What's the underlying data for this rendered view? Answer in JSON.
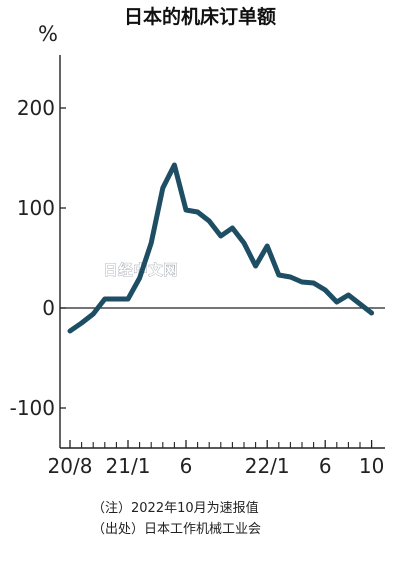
{
  "chart_data": {
    "type": "line",
    "title": "日本的机床订单额",
    "ylabel": "%",
    "xlabel": "",
    "ylim": [
      -140,
      255
    ],
    "grid": false,
    "legend": "none",
    "y_ticks": [
      "200",
      "100",
      "0",
      "-100"
    ],
    "y_tick_values": [
      200,
      100,
      0,
      -100
    ],
    "x_ticks": [
      "20/8",
      "21/1",
      "6",
      "22/1",
      "6",
      "10"
    ],
    "x_tick_months": [
      0,
      5,
      10,
      17,
      22,
      26
    ],
    "x_ticks_extra_months": [
      1,
      2,
      3,
      4,
      6,
      7,
      8,
      9,
      11,
      12,
      13,
      14,
      15,
      16,
      18,
      19,
      20,
      21,
      23,
      24,
      25
    ],
    "x_months": [
      0,
      1,
      2,
      3,
      4,
      5,
      6,
      7,
      8,
      9,
      10,
      11,
      12,
      13,
      14,
      15,
      16,
      17,
      18,
      19,
      20,
      21,
      22,
      23,
      24,
      25,
      26
    ],
    "series": [
      {
        "values": [
          -23,
          -15,
          -6,
          9,
          9,
          9,
          30,
          65,
          120,
          143,
          98,
          96,
          87,
          72,
          80,
          65,
          42,
          62,
          33,
          31,
          26,
          25,
          18,
          6,
          13,
          4,
          -5
        ]
      }
    ],
    "line_color": "#1d4e63",
    "notes": [
      "（注）2022年10月为速报值",
      "（出处）日本工作机械工业会"
    ],
    "watermark": "日经中文网"
  }
}
